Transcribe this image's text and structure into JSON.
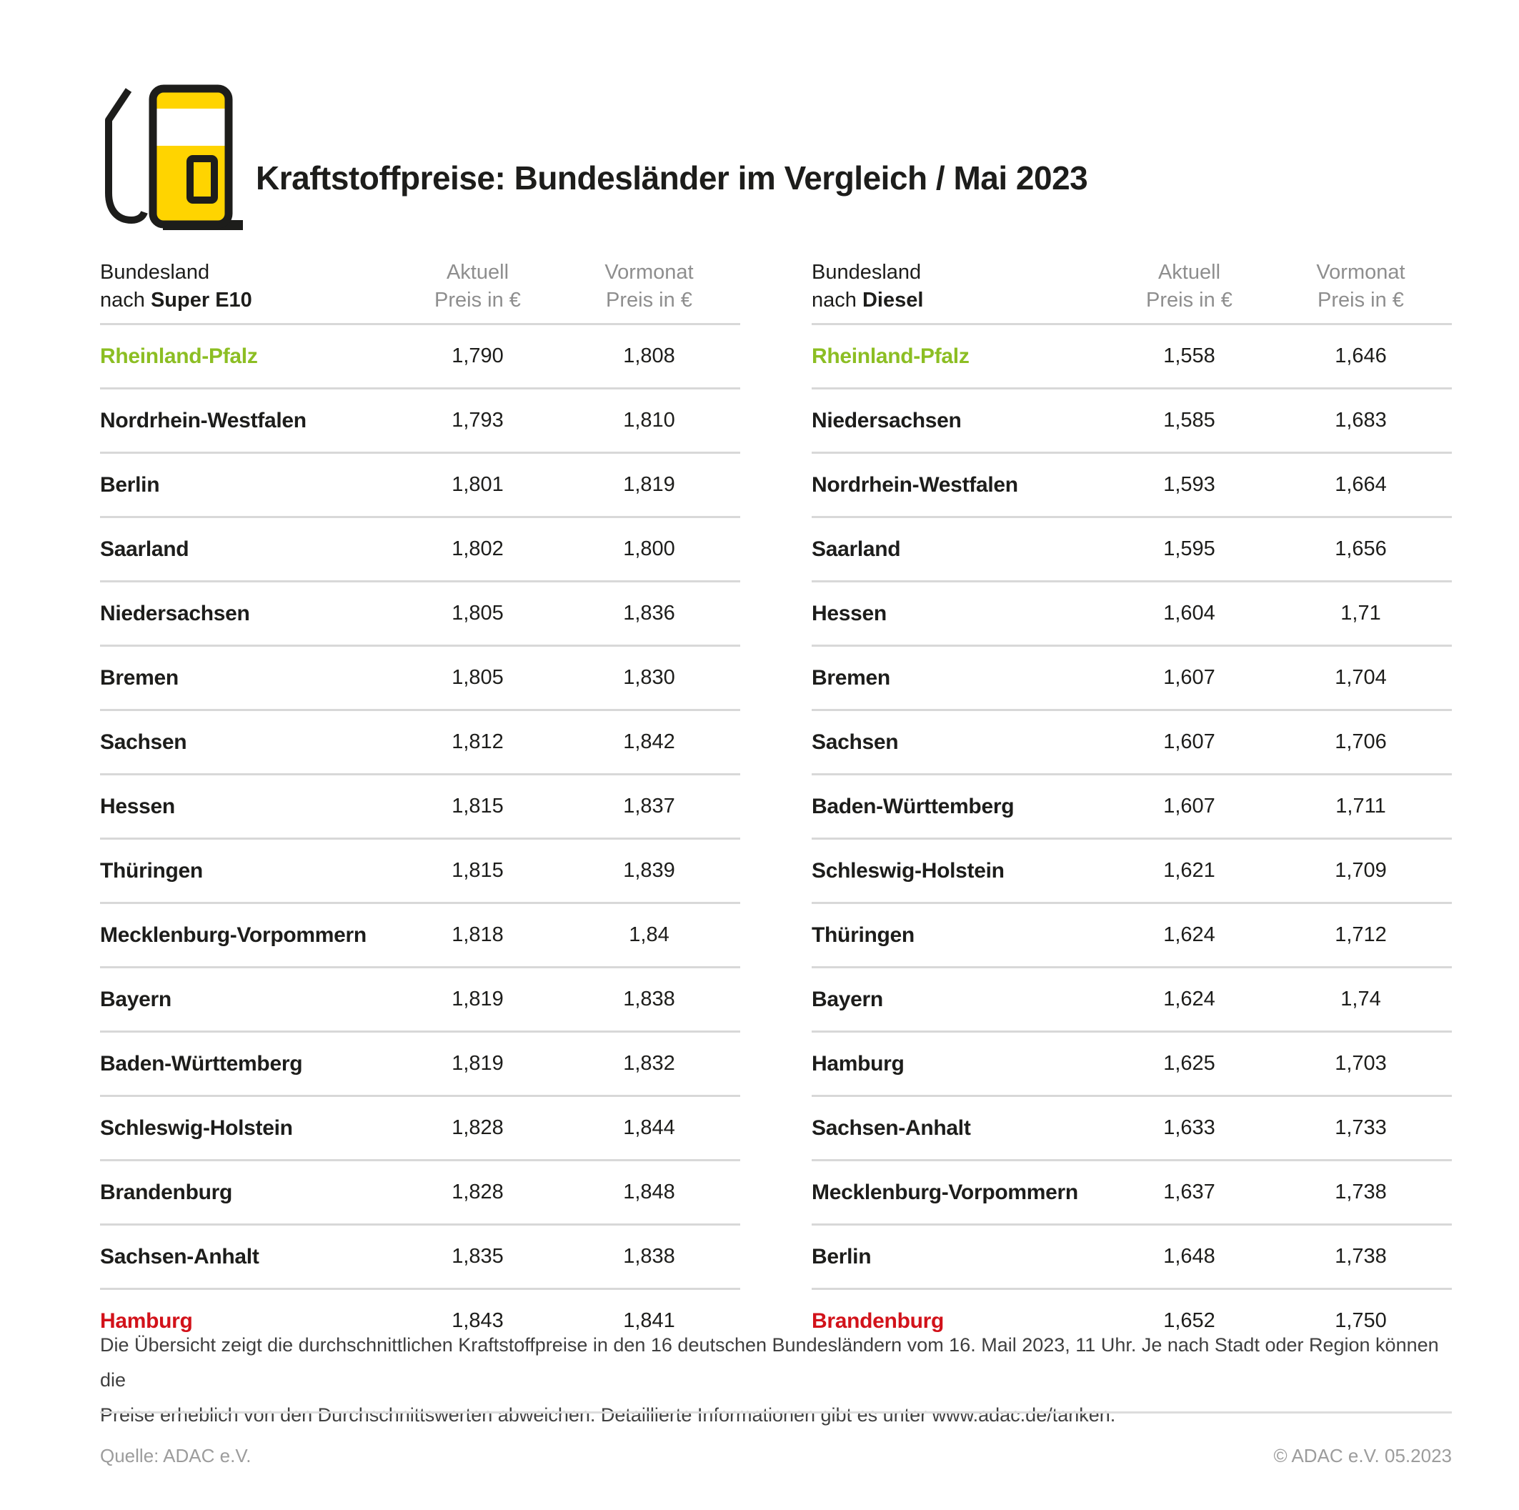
{
  "header": {
    "title": "Kraftstoffpreise: Bundesländer im Vergleich / Mai 2023"
  },
  "colors": {
    "brand_yellow": "#FFD400",
    "outline_black": "#1D1D1B",
    "cheapest_green": "#8CBE23",
    "most_expensive_red": "#D2121A",
    "header_gray": "#8E8E8E",
    "divider_gray": "#D8D8D8",
    "footer_gray": "#9C9C9C"
  },
  "chart_data": [
    {
      "type": "table",
      "fuel": "Super E10",
      "label_line1": "Bundesland",
      "label_line2_prefix": "nach ",
      "label_line2_bold": "Super E10",
      "col2_line1": "Aktuell",
      "col2_line2": "Preis in €",
      "col3_line1": "Vormonat",
      "col3_line2": "Preis in €",
      "rows": [
        {
          "state": "Rheinland-Pfalz",
          "aktuell": "1,790",
          "vormonat": "1,808",
          "highlight": "green"
        },
        {
          "state": "Nordrhein-Westfalen",
          "aktuell": "1,793",
          "vormonat": "1,810",
          "highlight": ""
        },
        {
          "state": "Berlin",
          "aktuell": "1,801",
          "vormonat": "1,819",
          "highlight": ""
        },
        {
          "state": "Saarland",
          "aktuell": "1,802",
          "vormonat": "1,800",
          "highlight": ""
        },
        {
          "state": "Niedersachsen",
          "aktuell": "1,805",
          "vormonat": "1,836",
          "highlight": ""
        },
        {
          "state": "Bremen",
          "aktuell": "1,805",
          "vormonat": "1,830",
          "highlight": ""
        },
        {
          "state": "Sachsen",
          "aktuell": "1,812",
          "vormonat": "1,842",
          "highlight": ""
        },
        {
          "state": "Hessen",
          "aktuell": "1,815",
          "vormonat": "1,837",
          "highlight": ""
        },
        {
          "state": "Thüringen",
          "aktuell": "1,815",
          "vormonat": "1,839",
          "highlight": ""
        },
        {
          "state": "Mecklenburg-Vorpommern",
          "aktuell": "1,818",
          "vormonat": "1,84",
          "highlight": ""
        },
        {
          "state": "Bayern",
          "aktuell": "1,819",
          "vormonat": "1,838",
          "highlight": ""
        },
        {
          "state": "Baden-Württemberg",
          "aktuell": "1,819",
          "vormonat": "1,832",
          "highlight": ""
        },
        {
          "state": "Schleswig-Holstein",
          "aktuell": "1,828",
          "vormonat": "1,844",
          "highlight": ""
        },
        {
          "state": "Brandenburg",
          "aktuell": "1,828",
          "vormonat": "1,848",
          "highlight": ""
        },
        {
          "state": "Sachsen-Anhalt",
          "aktuell": "1,835",
          "vormonat": "1,838",
          "highlight": ""
        },
        {
          "state": "Hamburg",
          "aktuell": "1,843",
          "vormonat": "1,841",
          "highlight": "red"
        }
      ]
    },
    {
      "type": "table",
      "fuel": "Diesel",
      "label_line1": "Bundesland",
      "label_line2_prefix": "nach ",
      "label_line2_bold": "Diesel",
      "col2_line1": "Aktuell",
      "col2_line2": "Preis in €",
      "col3_line1": "Vormonat",
      "col3_line2": "Preis in €",
      "rows": [
        {
          "state": "Rheinland-Pfalz",
          "aktuell": "1,558",
          "vormonat": "1,646",
          "highlight": "green"
        },
        {
          "state": "Niedersachsen",
          "aktuell": "1,585",
          "vormonat": "1,683",
          "highlight": ""
        },
        {
          "state": "Nordrhein-Westfalen",
          "aktuell": "1,593",
          "vormonat": "1,664",
          "highlight": ""
        },
        {
          "state": "Saarland",
          "aktuell": "1,595",
          "vormonat": "1,656",
          "highlight": ""
        },
        {
          "state": "Hessen",
          "aktuell": "1,604",
          "vormonat": "1,71",
          "highlight": ""
        },
        {
          "state": "Bremen",
          "aktuell": "1,607",
          "vormonat": "1,704",
          "highlight": ""
        },
        {
          "state": "Sachsen",
          "aktuell": "1,607",
          "vormonat": "1,706",
          "highlight": ""
        },
        {
          "state": "Baden-Württemberg",
          "aktuell": "1,607",
          "vormonat": "1,711",
          "highlight": ""
        },
        {
          "state": "Schleswig-Holstein",
          "aktuell": "1,621",
          "vormonat": "1,709",
          "highlight": ""
        },
        {
          "state": "Thüringen",
          "aktuell": "1,624",
          "vormonat": "1,712",
          "highlight": ""
        },
        {
          "state": "Bayern",
          "aktuell": "1,624",
          "vormonat": "1,74",
          "highlight": ""
        },
        {
          "state": "Hamburg",
          "aktuell": "1,625",
          "vormonat": "1,703",
          "highlight": ""
        },
        {
          "state": "Sachsen-Anhalt",
          "aktuell": "1,633",
          "vormonat": "1,733",
          "highlight": ""
        },
        {
          "state": "Mecklenburg-Vorpommern",
          "aktuell": "1,637",
          "vormonat": "1,738",
          "highlight": ""
        },
        {
          "state": "Berlin",
          "aktuell": "1,648",
          "vormonat": "1,738",
          "highlight": ""
        },
        {
          "state": "Brandenburg",
          "aktuell": "1,652",
          "vormonat": "1,750",
          "highlight": "red"
        }
      ]
    }
  ],
  "footnote": {
    "line1": "Die Übersicht zeigt die durchschnittlichen Kraftstoffpreise in den 16 deutschen Bundesländern vom 16. Mail 2023, 11 Uhr. Je nach Stadt oder Region können die",
    "line2": "Preise erheblich von den Durchschnittswerten abweichen. Detaillierte Informationen gibt es unter www.adac.de/tanken."
  },
  "footer": {
    "source": "Quelle: ADAC e.V.",
    "copyright": "© ADAC e.V. 05.2023"
  }
}
